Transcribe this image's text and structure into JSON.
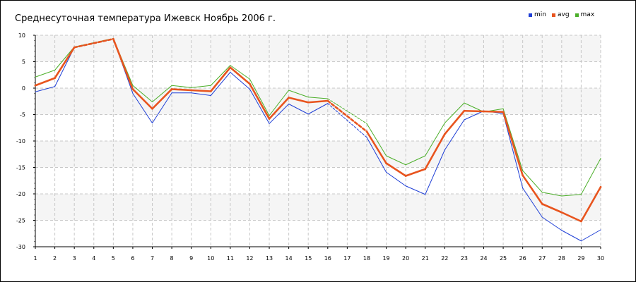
{
  "title": "Среднесуточная температура Ижевск  Ноябрь 2006 г.",
  "legend": [
    {
      "label": "min",
      "color": "#1f3fd6"
    },
    {
      "label": "avg",
      "color": "#e8541e"
    },
    {
      "label": "max",
      "color": "#4caf2a"
    }
  ],
  "chart_data": {
    "type": "line",
    "title": "Среднесуточная температура Ижевск  Ноябрь 2006 г.",
    "xlabel": "",
    "ylabel": "",
    "x": [
      1,
      2,
      3,
      4,
      5,
      6,
      7,
      8,
      9,
      10,
      11,
      12,
      13,
      14,
      15,
      16,
      17,
      18,
      19,
      20,
      21,
      22,
      23,
      24,
      25,
      26,
      27,
      28,
      29,
      30
    ],
    "ylim": [
      -30,
      10
    ],
    "yticks": [
      10,
      5,
      0,
      -5,
      -10,
      -15,
      -20,
      -25,
      -30
    ],
    "grid": true,
    "legend_position": "top-right",
    "gaps": [
      [
        3,
        5
      ],
      [
        16,
        18
      ]
    ],
    "series": [
      {
        "name": "min",
        "color": "#1f3fd6",
        "values": [
          -0.7,
          0.3,
          7.7,
          null,
          9.3,
          -1.0,
          -6.6,
          -0.9,
          -0.9,
          -1.4,
          3.0,
          -0.2,
          -6.7,
          -3.0,
          -4.9,
          -2.9,
          null,
          -9.3,
          -15.9,
          -18.5,
          -20.1,
          -11.7,
          -6.0,
          -4.3,
          -4.8,
          -18.9,
          -24.4,
          -26.9,
          -28.9,
          -26.8
        ]
      },
      {
        "name": "avg",
        "color": "#e8541e",
        "values": [
          0.5,
          1.9,
          7.7,
          null,
          9.3,
          -0.2,
          -3.9,
          -0.2,
          -0.4,
          -0.6,
          3.9,
          0.8,
          -5.8,
          -1.8,
          -2.7,
          -2.4,
          null,
          -8.2,
          -14.2,
          -16.6,
          -15.3,
          -8.7,
          -4.3,
          -4.4,
          -4.5,
          -16.5,
          -21.9,
          -23.5,
          -25.2,
          -18.7
        ]
      },
      {
        "name": "max",
        "color": "#4caf2a",
        "values": [
          2.1,
          3.4,
          7.8,
          null,
          9.4,
          0.5,
          -2.6,
          0.5,
          0.1,
          0.5,
          4.3,
          1.7,
          -5.2,
          -0.4,
          -1.7,
          -2.0,
          null,
          -6.7,
          -12.8,
          -14.5,
          -12.8,
          -6.6,
          -2.8,
          -4.5,
          -3.9,
          -15.6,
          -19.7,
          -20.4,
          -20.1,
          -13.3
        ]
      }
    ]
  }
}
